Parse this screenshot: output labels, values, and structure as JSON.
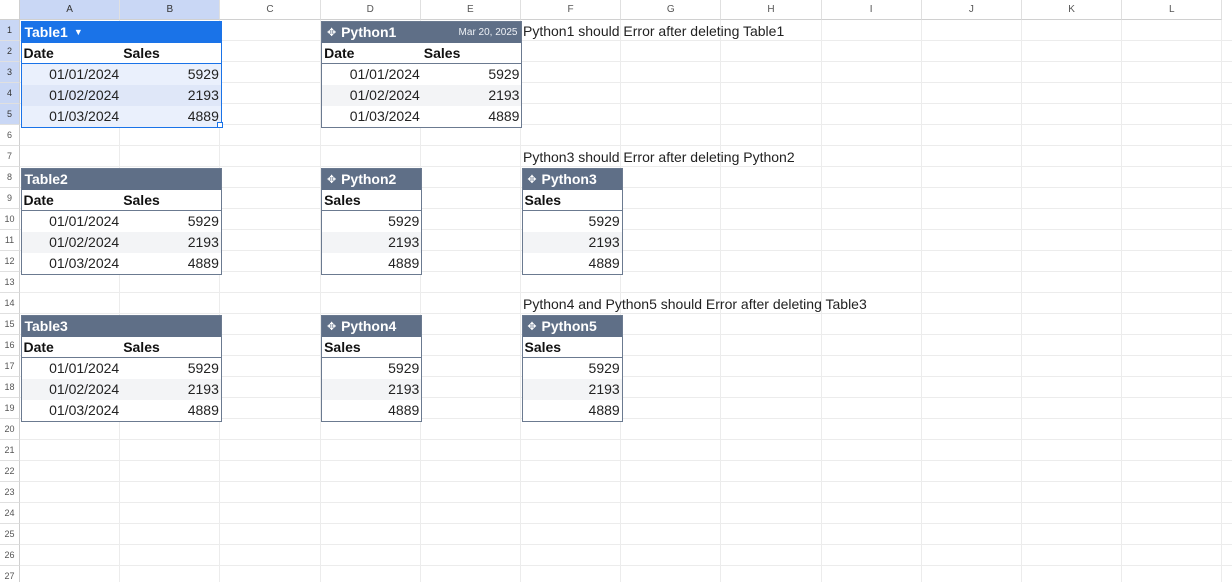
{
  "columns": [
    "A",
    "B",
    "C",
    "D",
    "E",
    "F",
    "G",
    "H",
    "I",
    "J",
    "K",
    "L"
  ],
  "selected_columns": [
    "A",
    "B"
  ],
  "rows": [
    "1",
    "2",
    "3",
    "4",
    "5",
    "6",
    "7",
    "8",
    "9",
    "10",
    "11",
    "12",
    "13",
    "14",
    "15",
    "16",
    "17",
    "18",
    "19",
    "20",
    "21",
    "22",
    "23",
    "24",
    "25",
    "26",
    "27"
  ],
  "selected_rows": [
    "1",
    "2",
    "3",
    "4",
    "5"
  ],
  "colors": {
    "table_header": "#5f6f87",
    "selected_table": "#1a73e8",
    "selection_header": "#c9d7f5"
  },
  "tables": [
    {
      "id": "table1",
      "name": "Table1",
      "kind": "table",
      "icon": "chevron-down-icon",
      "selected": true,
      "col": 0,
      "row": 0,
      "columns": [
        "Date",
        "Sales"
      ],
      "rows": [
        [
          "01/01/2024",
          "5929"
        ],
        [
          "01/02/2024",
          "2193"
        ],
        [
          "01/03/2024",
          "4889"
        ]
      ]
    },
    {
      "id": "python1",
      "name": "Python1",
      "kind": "code",
      "icon": "python-icon",
      "stamp": "Mar 20, 2025",
      "col": 3,
      "row": 0,
      "columns": [
        "Date",
        "Sales"
      ],
      "rows": [
        [
          "01/01/2024",
          "5929"
        ],
        [
          "01/02/2024",
          "2193"
        ],
        [
          "01/03/2024",
          "4889"
        ]
      ]
    },
    {
      "id": "table2",
      "name": "Table2",
      "kind": "table",
      "col": 0,
      "row": 7,
      "columns": [
        "Date",
        "Sales"
      ],
      "rows": [
        [
          "01/01/2024",
          "5929"
        ],
        [
          "01/02/2024",
          "2193"
        ],
        [
          "01/03/2024",
          "4889"
        ]
      ]
    },
    {
      "id": "python2",
      "name": "Python2",
      "kind": "code",
      "icon": "python-icon",
      "col": 3,
      "row": 7,
      "columns": [
        "Sales"
      ],
      "rows": [
        [
          "5929"
        ],
        [
          "2193"
        ],
        [
          "4889"
        ]
      ]
    },
    {
      "id": "python3",
      "name": "Python3",
      "kind": "code",
      "icon": "python-icon",
      "col": 5,
      "row": 7,
      "columns": [
        "Sales"
      ],
      "rows": [
        [
          "5929"
        ],
        [
          "2193"
        ],
        [
          "4889"
        ]
      ]
    },
    {
      "id": "table3",
      "name": "Table3",
      "kind": "table",
      "col": 0,
      "row": 14,
      "columns": [
        "Date",
        "Sales"
      ],
      "rows": [
        [
          "01/01/2024",
          "5929"
        ],
        [
          "01/02/2024",
          "2193"
        ],
        [
          "01/03/2024",
          "4889"
        ]
      ]
    },
    {
      "id": "python4",
      "name": "Python4",
      "kind": "code",
      "icon": "python-icon",
      "col": 3,
      "row": 14,
      "columns": [
        "Sales"
      ],
      "rows": [
        [
          "5929"
        ],
        [
          "2193"
        ],
        [
          "4889"
        ]
      ]
    },
    {
      "id": "python5",
      "name": "Python5",
      "kind": "code",
      "icon": "python-icon",
      "col": 5,
      "row": 14,
      "columns": [
        "Sales"
      ],
      "rows": [
        [
          "5929"
        ],
        [
          "2193"
        ],
        [
          "4889"
        ]
      ]
    }
  ],
  "notes": [
    {
      "id": "note1",
      "text": "Python1 should Error after deleting Table1",
      "col": 5,
      "row": 0
    },
    {
      "id": "note2",
      "text": "Python3 should Error after deleting Python2",
      "col": 5,
      "row": 6
    },
    {
      "id": "note3",
      "text": "Python4 and Python5 should Error after deleting Table3",
      "col": 5,
      "row": 13
    }
  ]
}
